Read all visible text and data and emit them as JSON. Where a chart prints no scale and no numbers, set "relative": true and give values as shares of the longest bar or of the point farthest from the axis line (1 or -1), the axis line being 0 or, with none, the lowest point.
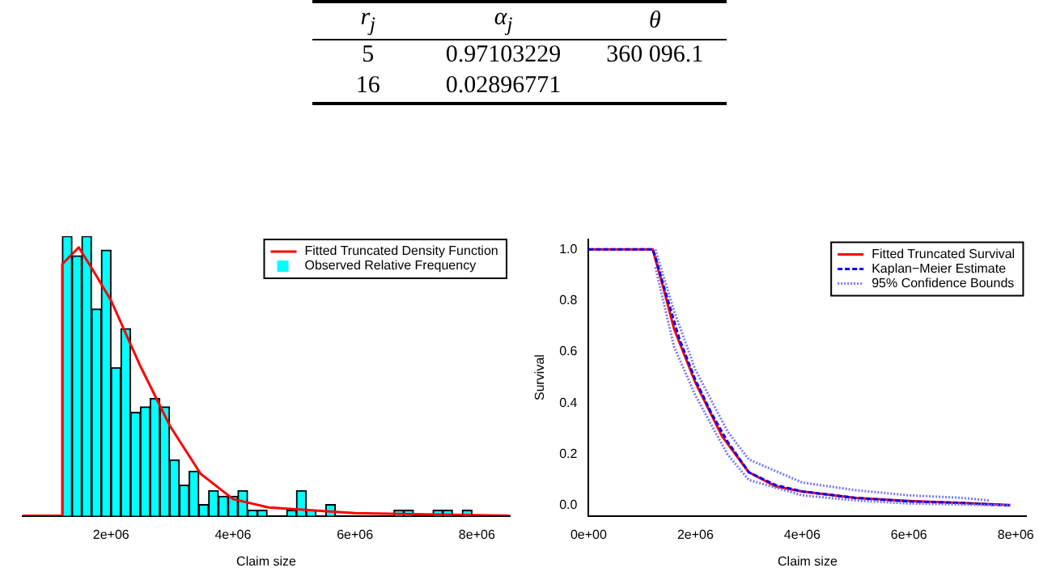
{
  "chart_data": [
    {
      "type": "other",
      "annotations": [
        "r$_{j}$",
        "α$_{j}$",
        "θ",
        "5",
        "0.97103229",
        "360 096.1",
        "16",
        "0.02896771"
      ]
    },
    {
      "type": "histogram",
      "relative": true,
      "xlabel": "Claim size",
      "legend": "top right",
      "marker": "none",
      "bins": [
        1200000,
        1360000,
        1520000,
        1680000,
        1840000,
        2000000,
        2160000,
        2320000,
        2480000,
        2640000,
        2800000,
        2960000,
        3120000,
        3280000,
        3440000,
        3600000,
        3760000,
        3920000,
        4080000,
        4240000,
        4400000,
        4560000,
        4720000,
        4880000,
        5040000,
        5200000,
        5360000,
        5520000,
        5680000,
        5840000,
        6000000,
        6160000,
        6320000,
        6480000,
        6640000,
        6800000,
        6960000,
        7120000,
        7280000,
        7440000,
        7600000,
        7760000,
        7920000
      ],
      "xlim": [
        550000,
        8540000
      ],
      "xticks": [
        {
          "value": 2000000,
          "label": "2e+06"
        },
        {
          "value": 4000000,
          "label": "4e+06"
        },
        {
          "value": 6000000,
          "label": "6e+06"
        },
        {
          "value": 8000000,
          "label": "8e+06"
        }
      ],
      "series": [
        {
          "type": "line",
          "name": "Fitted Truncated Density Function",
          "color": "#ff0000",
          "x": [
            550000,
            1200000,
            1200000,
            1470000,
            1700000,
            2000000,
            2470000,
            2970000,
            3470000,
            4000000,
            4580000,
            6000000,
            8540000
          ],
          "values": [
            0,
            0,
            0.9,
            0.96,
            0.88,
            0.77,
            0.54,
            0.32,
            0.15,
            0.06,
            0.03,
            0.01,
            0
          ]
        },
        {
          "type": "histogram",
          "name": "Observed Relative Frequency",
          "color": "#00ffff",
          "values": [
            1.0,
            0.93,
            1.0,
            0.74,
            0.95,
            0.53,
            0.67,
            0.37,
            0.39,
            0.42,
            0.39,
            0.2,
            0.11,
            0.16,
            0.04,
            0.09,
            0.07,
            0.07,
            0.09,
            0.02,
            0.02,
            0,
            0,
            0.02,
            0.09,
            0.02,
            0,
            0.04,
            0,
            0,
            0,
            0,
            0,
            0,
            0.02,
            0.02,
            0,
            0,
            0.02,
            0.02,
            0,
            0.02
          ]
        }
      ]
    },
    {
      "type": "line",
      "xlabel": "Claim size",
      "ylabel": "Survival",
      "legend": "top right",
      "marker": "none",
      "xlim": [
        0,
        8200000
      ],
      "xticks": [
        {
          "value": 0,
          "label": "0e+00"
        },
        {
          "value": 2000000,
          "label": "2e+06"
        },
        {
          "value": 4000000,
          "label": "4e+06"
        },
        {
          "value": 6000000,
          "label": "6e+06"
        },
        {
          "value": 8000000,
          "label": "8e+06"
        }
      ],
      "ylim": [
        -0.04,
        1.04
      ],
      "yticks": [
        {
          "value": 0,
          "label": "0.0"
        },
        0.2,
        0.4,
        0.6,
        0.8,
        {
          "value": 1,
          "label": "1.0"
        }
      ],
      "series": [
        {
          "name": "Fitted Truncated Survival",
          "color": "#ff0000",
          "line_style": "solid",
          "x": [
            0,
            1200000,
            1400000,
            1600000,
            2000000,
            2500000,
            3000000,
            3500000,
            4000000,
            5000000,
            6000000,
            7000000,
            7900000
          ],
          "values": [
            1,
            1,
            0.85,
            0.69,
            0.48,
            0.27,
            0.13,
            0.075,
            0.055,
            0.03,
            0.018,
            0.01,
            0.002
          ]
        },
        {
          "name": "Kaplan−Meier Estimate",
          "color": "#0000ff",
          "line_style": "dashed",
          "x": [
            0,
            1200000,
            1250000,
            1400000,
            1700000,
            2000000,
            2300000,
            2600000,
            3000000,
            3500000,
            4000000,
            5000000,
            6000000,
            7000000,
            7900000
          ],
          "values": [
            1,
            1,
            0.97,
            0.86,
            0.65,
            0.49,
            0.36,
            0.25,
            0.13,
            0.08,
            0.055,
            0.03,
            0.016,
            0.01,
            0
          ]
        },
        {
          "name": "95% Confidence Bounds",
          "color": "#7777ff",
          "line_style": "dotted",
          "x": [
            1250000,
            1600000,
            2000000,
            2600000,
            3000000,
            4000000,
            5000000,
            6000000,
            7000000,
            7500000
          ],
          "values": [
            1,
            0.76,
            0.53,
            0.29,
            0.18,
            0.09,
            0.06,
            0.04,
            0.03,
            0.02
          ]
        },
        {
          "color": "#7777ff",
          "line_style": "dotted",
          "x": [
            1250000,
            1600000,
            2000000,
            2600000,
            3000000,
            4000000,
            5000000,
            6000000,
            7000000,
            7900000
          ],
          "values": [
            0.93,
            0.62,
            0.43,
            0.2,
            0.1,
            0.04,
            0.02,
            0.008,
            0.004,
            0
          ]
        }
      ]
    }
  ]
}
